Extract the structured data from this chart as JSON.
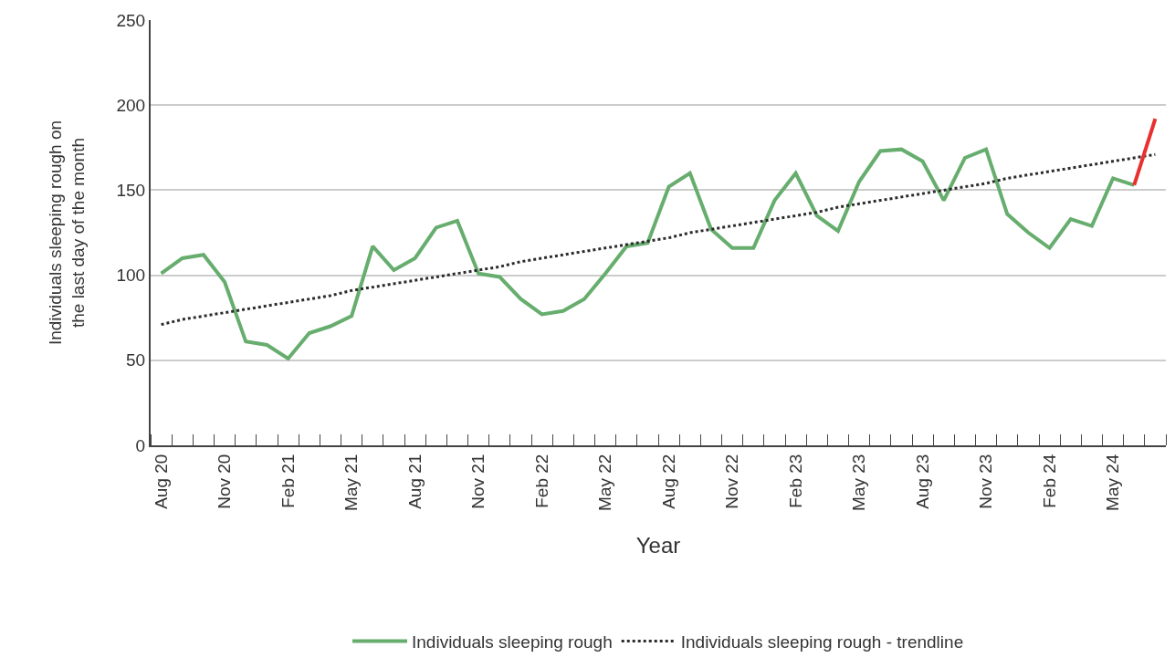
{
  "chart_data": {
    "type": "line",
    "xlabel": "Year",
    "ylabel": "Individuals sleeping rough on the last day of the month",
    "categories": [
      "Aug 20",
      null,
      null,
      "Nov 20",
      null,
      null,
      "Feb 21",
      null,
      null,
      "May 21",
      null,
      null,
      "Aug 21",
      null,
      null,
      "Nov 21",
      null,
      null,
      "Feb 22",
      null,
      null,
      "May 22",
      null,
      null,
      "Aug 22",
      null,
      null,
      "Nov 22",
      null,
      null,
      "Feb 23",
      null,
      null,
      "May 23",
      null,
      null,
      "Aug 23",
      null,
      null,
      "Nov 23",
      null,
      null,
      "Feb 24",
      null,
      null,
      "May 24",
      null,
      null
    ],
    "series": [
      {
        "name": "Individuals sleeping rough",
        "color": "#66ad6e",
        "line_style": "solid",
        "values": [
          101,
          110,
          112,
          96,
          61,
          59,
          51,
          66,
          70,
          76,
          117,
          103,
          110,
          128,
          132,
          101,
          99,
          86,
          77,
          79,
          86,
          101,
          117,
          119,
          152,
          160,
          127,
          116,
          116,
          144,
          160,
          135,
          126,
          155,
          173,
          174,
          167,
          144,
          169,
          174,
          136,
          125,
          116,
          133,
          129,
          157,
          153,
          null
        ]
      },
      {
        "name": "Individuals sleeping rough - trendline",
        "color": "#2b2b2b",
        "line_style": "dotted",
        "values": [
          71,
          74,
          76,
          78,
          80,
          82,
          84,
          86,
          88,
          91,
          93,
          95,
          97,
          99,
          101,
          103,
          105,
          108,
          110,
          112,
          114,
          116,
          118,
          120,
          122,
          125,
          127,
          129,
          131,
          133,
          135,
          137,
          140,
          142,
          144,
          146,
          148,
          150,
          152,
          154,
          157,
          159,
          161,
          163,
          165,
          167,
          169,
          171
        ]
      },
      {
        "color": "#e8302f",
        "line_style": "solid",
        "values": [
          null,
          null,
          null,
          null,
          null,
          null,
          null,
          null,
          null,
          null,
          null,
          null,
          null,
          null,
          null,
          null,
          null,
          null,
          null,
          null,
          null,
          null,
          null,
          null,
          null,
          null,
          null,
          null,
          null,
          null,
          null,
          null,
          null,
          null,
          null,
          null,
          null,
          null,
          null,
          null,
          null,
          null,
          null,
          null,
          null,
          null,
          153,
          192
        ]
      }
    ],
    "ylim": [
      0,
      250
    ],
    "yticks": [
      0,
      50,
      100,
      150,
      200,
      250
    ],
    "grid": "y",
    "legend": "bottom",
    "marker": "none"
  }
}
